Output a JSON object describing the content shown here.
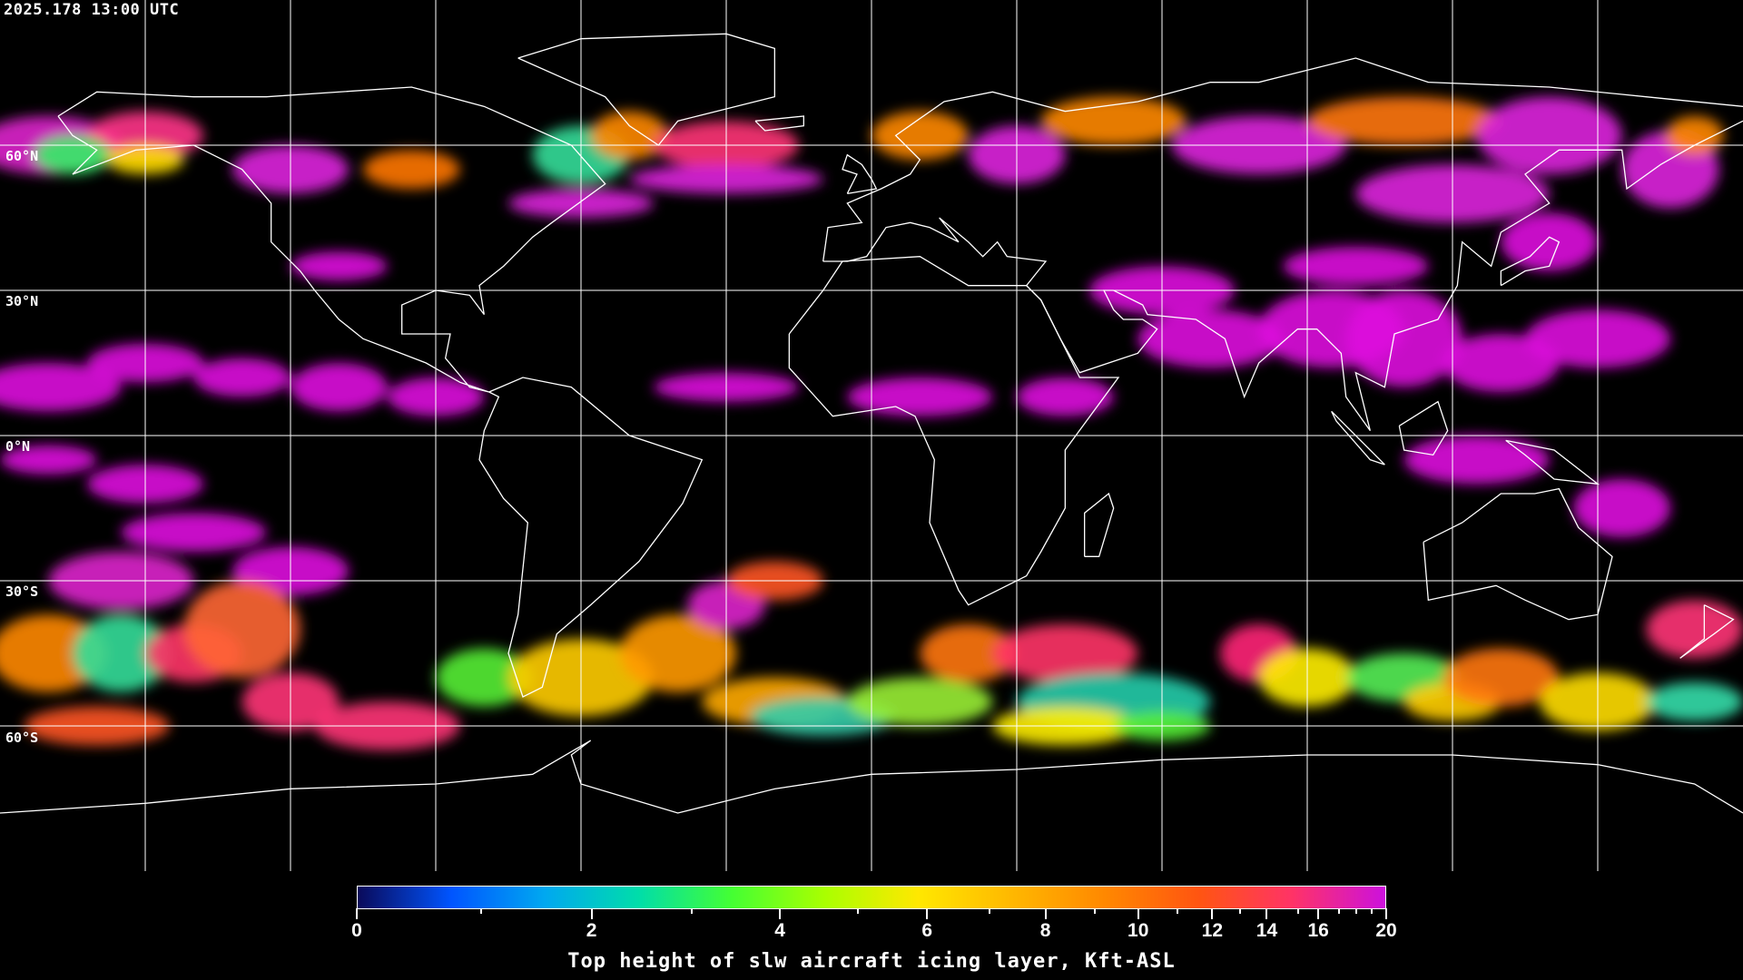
{
  "timestamp": "2025.178 13:00 UTC",
  "map": {
    "projection": "equirectangular",
    "lat_labels": [
      "60°N",
      "30°N",
      "0°N",
      "30°S",
      "60°S"
    ],
    "lat_values": [
      60,
      30,
      0,
      -30,
      -60
    ],
    "lon_gridlines": [
      -150,
      -120,
      -90,
      -60,
      -30,
      0,
      30,
      60,
      90,
      120,
      150
    ],
    "background_color": "#000000",
    "gridline_color": "#ffffff",
    "coastline_color": "#ffffff"
  },
  "colorbar": {
    "title": "Top height of slw aircraft icing layer, Kft-ASL",
    "range": [
      0,
      20
    ],
    "major_ticks": [
      "0",
      "2",
      "4",
      "6",
      "8",
      "10",
      "12",
      "14",
      "16",
      "20"
    ],
    "minor_ticks": [
      1,
      3,
      5,
      7,
      9,
      11,
      13,
      15,
      17,
      18,
      19
    ],
    "colors": [
      "#0a0a5a",
      "#0055ff",
      "#00a8f0",
      "#00ddaa",
      "#44ff33",
      "#aaff00",
      "#ffe800",
      "#ffb800",
      "#ff8800",
      "#ff5511",
      "#ff3366",
      "#cc11dd"
    ]
  }
}
